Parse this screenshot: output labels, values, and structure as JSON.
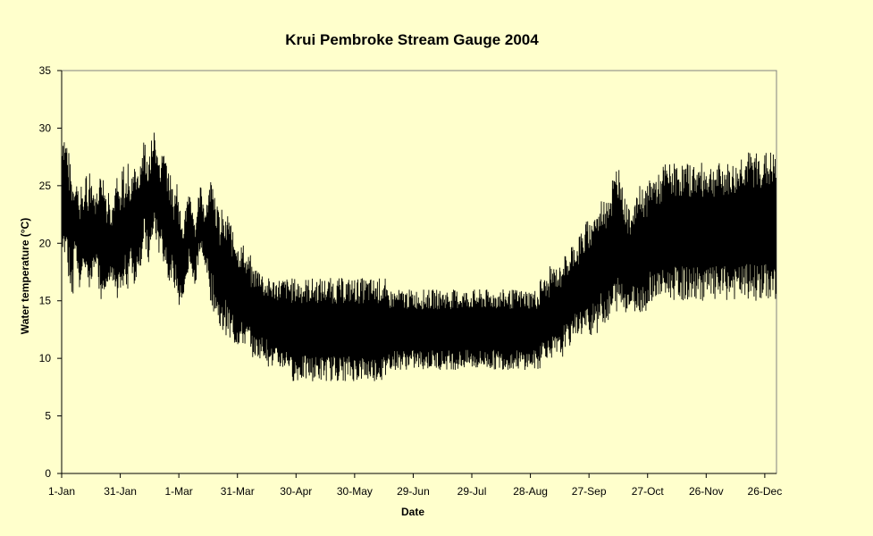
{
  "chart_data": {
    "type": "line",
    "title": "Krui Pembroke Stream Gauge 2004",
    "xlabel": "Date",
    "ylabel": "Water temperature (°C)",
    "ylim": [
      0,
      35
    ],
    "yticks": [
      0,
      5,
      10,
      15,
      20,
      25,
      30,
      35
    ],
    "x_tick_labels": [
      "1-Jan",
      "31-Jan",
      "1-Mar",
      "31-Mar",
      "30-Apr",
      "30-May",
      "29-Jun",
      "29-Jul",
      "28-Aug",
      "27-Sep",
      "27-Oct",
      "26-Nov",
      "26-Dec"
    ],
    "xlim": [
      "2004-01-01",
      "2004-12-31"
    ],
    "grid": false,
    "legend": "none",
    "series": [
      {
        "color": "#000000",
        "sampling": "sub-daily (approx. 6 readings per day)",
        "daily_min": [
          19,
          18,
          20,
          17,
          16,
          15,
          19,
          18,
          17,
          16,
          17,
          18,
          16,
          17,
          15,
          16,
          17,
          18,
          17,
          16,
          15,
          16,
          16,
          15,
          16,
          17,
          16,
          15,
          14,
          15,
          16,
          15,
          17,
          16,
          17,
          18,
          17,
          16,
          17,
          18,
          18,
          19,
          20,
          19,
          18,
          19,
          20,
          21,
          20,
          19,
          20,
          19,
          18,
          18,
          17,
          16,
          17,
          16,
          16,
          15,
          14,
          15,
          15,
          16,
          17,
          18,
          17,
          17,
          16,
          18,
          19,
          19,
          18,
          18,
          17,
          16,
          15,
          14,
          14,
          13,
          13,
          12,
          12,
          13,
          12,
          12,
          11,
          12,
          11,
          11,
          11,
          11,
          11,
          11,
          11,
          11,
          11,
          10,
          10,
          10,
          10,
          10,
          10,
          10,
          10,
          9,
          10,
          9,
          9,
          9,
          9,
          9,
          9,
          9,
          9,
          9,
          9,
          8,
          8,
          8,
          8,
          8,
          8,
          8,
          8,
          8,
          8,
          8,
          8,
          8,
          8,
          8,
          8,
          8,
          8,
          8,
          8,
          8,
          8,
          8,
          8,
          8,
          8,
          8,
          8,
          8,
          8,
          8,
          8,
          8,
          8,
          8,
          8,
          8,
          8,
          8,
          8,
          8,
          8,
          8,
          8,
          8,
          8,
          8,
          8,
          8,
          9,
          9,
          9,
          9,
          9,
          9,
          9,
          9,
          9,
          9,
          9,
          9,
          9,
          9,
          9,
          9,
          9,
          9,
          9,
          9,
          9,
          9,
          9,
          9,
          9,
          9,
          9,
          9,
          9,
          9,
          9,
          9,
          9,
          9,
          9,
          9,
          9,
          9,
          9,
          9,
          9,
          9,
          9,
          9,
          9,
          9,
          9,
          9,
          9,
          9,
          9,
          9,
          9,
          9,
          9,
          9,
          9,
          9,
          9,
          9,
          9,
          9,
          9,
          9,
          9,
          9,
          9,
          9,
          9,
          9,
          9,
          9,
          9,
          9,
          9,
          9,
          9,
          9,
          9,
          10,
          10,
          10,
          10,
          10,
          10,
          10,
          10,
          10,
          10,
          10,
          10,
          11,
          11,
          11,
          11,
          12,
          12,
          12,
          12,
          12,
          12,
          12,
          12,
          12,
          12,
          12,
          13,
          13,
          12,
          13,
          13,
          13,
          13,
          13,
          13,
          13,
          14,
          14,
          14,
          14,
          14,
          14,
          14,
          14,
          14,
          14,
          14,
          14,
          14,
          14,
          14,
          14,
          14,
          14,
          14,
          15,
          15,
          15,
          15,
          15,
          15,
          15,
          15,
          15,
          15,
          15,
          15,
          15,
          15,
          15,
          15,
          15,
          15,
          15,
          15,
          15,
          15,
          15,
          15,
          15,
          15,
          15,
          15,
          15,
          15,
          15,
          15,
          15,
          15,
          15,
          15,
          15,
          15,
          15,
          15,
          15,
          15,
          15,
          15,
          15,
          15,
          15,
          15,
          15,
          15,
          15,
          15,
          15,
          15,
          15,
          15,
          15,
          15,
          15,
          15,
          15,
          15,
          15,
          15,
          15
        ],
        "daily_max": [
          30,
          30,
          29,
          28,
          27,
          26,
          25,
          26,
          25,
          24,
          25,
          24,
          26,
          24,
          27,
          26,
          25,
          24,
          25,
          26,
          27,
          26,
          25,
          24,
          25,
          23,
          24,
          25,
          26,
          25,
          24,
          27,
          25,
          26,
          27,
          25,
          26,
          28,
          27,
          26,
          27,
          28,
          29,
          28,
          27,
          28,
          29,
          30,
          29,
          28,
          27,
          28,
          29,
          28,
          27,
          26,
          25,
          24,
          25,
          26,
          24,
          23,
          22,
          23,
          24,
          25,
          24,
          23,
          22,
          23,
          24,
          25,
          24,
          23,
          24,
          25,
          26,
          27,
          25,
          24,
          23,
          22,
          23,
          22,
          22,
          23,
          22,
          21,
          21,
          21,
          20,
          20,
          20,
          20,
          19,
          19,
          19,
          18,
          18,
          18,
          18,
          18,
          18,
          17,
          17,
          17,
          17,
          17,
          17,
          17,
          17,
          17,
          17,
          17,
          17,
          17,
          17,
          17,
          17,
          17,
          17,
          17,
          17,
          17,
          17,
          17,
          17,
          17,
          17,
          17,
          17,
          17,
          17,
          17,
          17,
          17,
          17,
          17,
          17,
          17,
          17,
          17,
          17,
          17,
          17,
          17,
          17,
          17,
          17,
          17,
          17,
          17,
          17,
          17,
          17,
          17,
          17,
          17,
          17,
          17,
          17,
          17,
          17,
          17,
          17,
          17,
          16,
          16,
          16,
          16,
          16,
          16,
          16,
          16,
          16,
          16,
          16,
          16,
          16,
          16,
          16,
          16,
          16,
          16,
          16,
          16,
          16,
          16,
          16,
          16,
          16,
          16,
          16,
          16,
          16,
          16,
          16,
          16,
          16,
          16,
          16,
          16,
          16,
          16,
          16,
          16,
          16,
          16,
          16,
          16,
          16,
          16,
          16,
          16,
          16,
          16,
          16,
          16,
          16,
          16,
          16,
          16,
          16,
          16,
          16,
          16,
          16,
          16,
          16,
          16,
          16,
          16,
          16,
          16,
          16,
          16,
          16,
          16,
          16,
          16,
          16,
          16,
          16,
          16,
          16,
          17,
          17,
          17,
          17,
          17,
          18,
          18,
          18,
          18,
          18,
          18,
          19,
          19,
          19,
          19,
          19,
          20,
          20,
          20,
          20,
          21,
          21,
          21,
          22,
          22,
          22,
          22,
          23,
          23,
          23,
          23,
          24,
          24,
          24,
          25,
          25,
          25,
          26,
          26,
          27,
          27,
          27,
          25,
          24,
          24,
          23,
          23,
          24,
          24,
          24,
          25,
          25,
          25,
          25,
          25,
          25,
          26,
          26,
          26,
          26,
          26,
          26,
          26,
          27,
          27,
          27,
          27,
          27,
          27,
          27,
          27,
          27,
          27,
          27,
          27,
          27,
          27,
          27,
          27,
          27,
          27,
          27,
          27,
          27,
          27,
          27,
          27,
          27,
          27,
          27,
          27,
          27,
          27,
          27,
          27,
          27,
          27,
          27,
          27,
          27,
          27,
          27,
          28,
          28,
          28,
          28,
          28,
          28,
          28,
          28,
          28,
          28,
          28,
          28,
          28,
          28,
          28,
          28,
          28,
          28,
          28,
          28,
          28,
          28,
          28,
          28,
          28
        ]
      }
    ]
  }
}
